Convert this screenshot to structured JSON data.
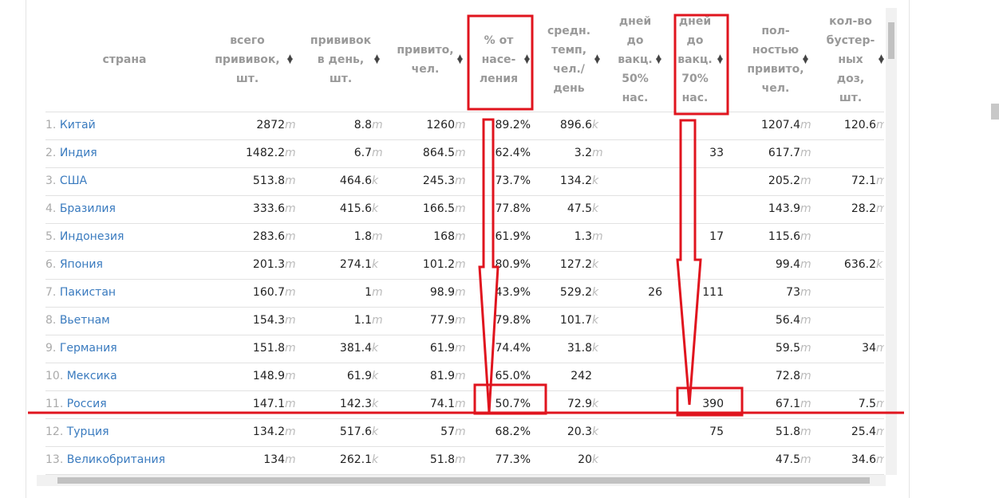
{
  "table": {
    "headers": [
      "страна",
      "всего\nпрививок,\nшт.",
      "прививок\nв день,\nшт.",
      "привито,\nчел.",
      "% от\nнасе-\nления",
      "средн.\nтемп,\nчел./\nдень",
      "дней\nдо\nвакц.\n50%\nнас.",
      "дней\nдо\nвакц.\n70%\nнас.",
      "пол-\nностью\nпривито,\nчел.",
      "кол-во\nбустер-\nных\nдоз,\nшт."
    ],
    "rows": [
      {
        "rank": "1.",
        "name": "Китай",
        "cells": [
          [
            "2872",
            "m"
          ],
          [
            "8.8",
            "m"
          ],
          [
            "1260",
            "m"
          ],
          "89.2%",
          [
            "896.6",
            "k"
          ],
          null,
          null,
          [
            "1207.4",
            "m"
          ],
          [
            "120.6",
            "m"
          ]
        ]
      },
      {
        "rank": "2.",
        "name": "Индия",
        "cells": [
          [
            "1482.2",
            "m"
          ],
          [
            "6.7",
            "m"
          ],
          [
            "864.5",
            "m"
          ],
          "62.4%",
          [
            "3.2",
            "m"
          ],
          null,
          "33",
          [
            "617.7",
            "m"
          ],
          null
        ]
      },
      {
        "rank": "3.",
        "name": "США",
        "cells": [
          [
            "513.8",
            "m"
          ],
          [
            "464.6",
            "k"
          ],
          [
            "245.3",
            "m"
          ],
          "73.7%",
          [
            "134.2",
            "k"
          ],
          null,
          null,
          [
            "205.2",
            "m"
          ],
          [
            "72.1",
            "m"
          ]
        ]
      },
      {
        "rank": "4.",
        "name": "Бразилия",
        "cells": [
          [
            "333.6",
            "m"
          ],
          [
            "415.6",
            "k"
          ],
          [
            "166.5",
            "m"
          ],
          "77.8%",
          [
            "47.5",
            "k"
          ],
          null,
          null,
          [
            "143.9",
            "m"
          ],
          [
            "28.2",
            "m"
          ]
        ]
      },
      {
        "rank": "5.",
        "name": "Индонезия",
        "cells": [
          [
            "283.6",
            "m"
          ],
          [
            "1.8",
            "m"
          ],
          [
            "168",
            "m"
          ],
          "61.9%",
          [
            "1.3",
            "m"
          ],
          null,
          "17",
          [
            "115.6",
            "m"
          ],
          null
        ]
      },
      {
        "rank": "6.",
        "name": "Япония",
        "cells": [
          [
            "201.3",
            "m"
          ],
          [
            "274.1",
            "k"
          ],
          [
            "101.2",
            "m"
          ],
          "80.9%",
          [
            "127.2",
            "k"
          ],
          null,
          null,
          [
            "99.4",
            "m"
          ],
          [
            "636.2",
            "k"
          ]
        ]
      },
      {
        "rank": "7.",
        "name": "Пакистан",
        "cells": [
          [
            "160.7",
            "m"
          ],
          [
            "1",
            "m"
          ],
          [
            "98.9",
            "m"
          ],
          "43.9%",
          [
            "529.2",
            "k"
          ],
          "26",
          "111",
          [
            "73",
            "m"
          ],
          null
        ]
      },
      {
        "rank": "8.",
        "name": "Вьетнам",
        "cells": [
          [
            "154.3",
            "m"
          ],
          [
            "1.1",
            "m"
          ],
          [
            "77.9",
            "m"
          ],
          "79.8%",
          [
            "101.7",
            "k"
          ],
          null,
          null,
          [
            "56.4",
            "m"
          ],
          null
        ]
      },
      {
        "rank": "9.",
        "name": "Германия",
        "cells": [
          [
            "151.8",
            "m"
          ],
          [
            "381.4",
            "k"
          ],
          [
            "61.9",
            "m"
          ],
          "74.4%",
          [
            "31.8",
            "k"
          ],
          null,
          null,
          [
            "59.5",
            "m"
          ],
          [
            "34",
            "m"
          ]
        ]
      },
      {
        "rank": "10.",
        "name": "Мексика",
        "cells": [
          [
            "148.9",
            "m"
          ],
          [
            "61.9",
            "k"
          ],
          [
            "81.9",
            "m"
          ],
          "65.0%",
          [
            "242",
            null
          ],
          null,
          null,
          [
            "72.8",
            "m"
          ],
          null
        ]
      },
      {
        "rank": "11.",
        "name": "Россия",
        "cells": [
          [
            "147.1",
            "m"
          ],
          [
            "142.3",
            "k"
          ],
          [
            "74.1",
            "m"
          ],
          "50.7%",
          [
            "72.9",
            "k"
          ],
          null,
          "390",
          [
            "67.1",
            "m"
          ],
          [
            "7.5",
            "m"
          ]
        ]
      },
      {
        "rank": "12.",
        "name": "Турция",
        "cells": [
          [
            "134.2",
            "m"
          ],
          [
            "517.6",
            "k"
          ],
          [
            "57",
            "m"
          ],
          "68.2%",
          [
            "20.3",
            "k"
          ],
          null,
          "75",
          [
            "51.8",
            "m"
          ],
          [
            "25.4",
            "m"
          ]
        ]
      },
      {
        "rank": "13.",
        "name": "Великобритания",
        "cells": [
          [
            "134",
            "m"
          ],
          [
            "262.1",
            "k"
          ],
          [
            "51.8",
            "m"
          ],
          "77.3%",
          [
            "20",
            "k"
          ],
          null,
          null,
          [
            "47.5",
            "m"
          ],
          [
            "34.6",
            "m"
          ]
        ]
      }
    ]
  }
}
